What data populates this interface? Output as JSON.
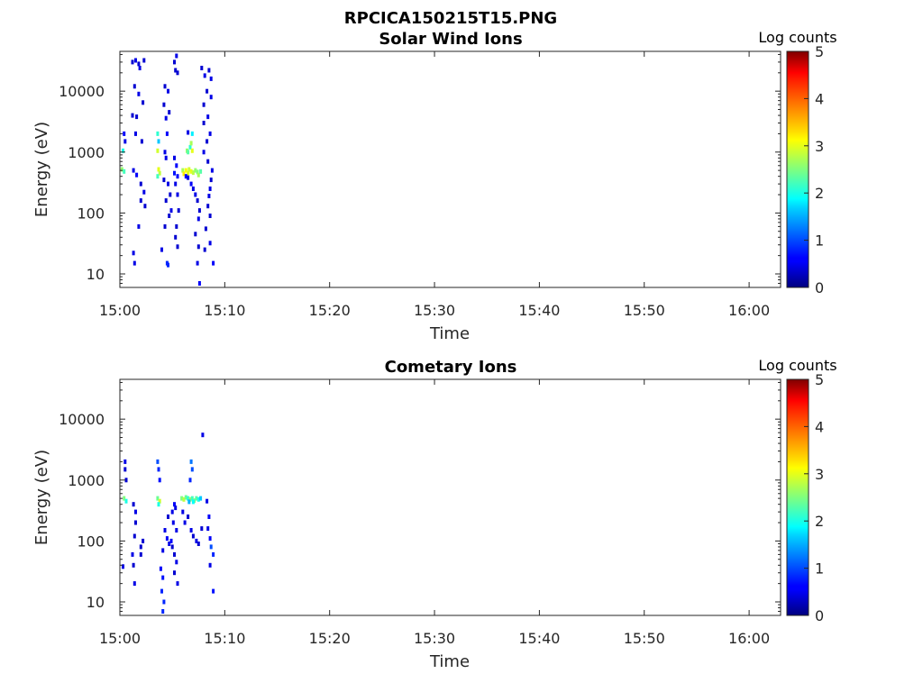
{
  "figure": {
    "title": "RPCICA150215T15.PNG"
  },
  "colorbar_label": "Log counts",
  "chart_data": [
    {
      "type": "heatmap",
      "title": "Solar Wind Ions",
      "xlabel": "Time",
      "ylabel": "Energy (eV)",
      "x_ticks": [
        "15:00",
        "15:10",
        "15:20",
        "15:30",
        "15:40",
        "15:50",
        "16:00"
      ],
      "xlim_minutes": [
        0,
        63
      ],
      "y_scale": "log",
      "y_ticks": [
        "10",
        "100",
        "1000",
        "10000"
      ],
      "ylim": [
        6,
        45000
      ],
      "colorbar": {
        "label": "Log counts",
        "range": [
          0,
          5
        ],
        "ticks": [
          "0",
          "1",
          "2",
          "3",
          "4",
          "5"
        ],
        "colormap": "jet"
      },
      "cells": [
        [
          0.2,
          520,
          2.6
        ],
        [
          0.4,
          480,
          2.2
        ],
        [
          0.3,
          1050,
          2.0
        ],
        [
          0.5,
          1500,
          0.5
        ],
        [
          0.4,
          2000,
          0.6
        ],
        [
          1.2,
          30000,
          0.4
        ],
        [
          1.5,
          32000,
          0.5
        ],
        [
          1.8,
          28000,
          0.4
        ],
        [
          2.3,
          32000,
          0.4
        ],
        [
          1.9,
          24000,
          0.5
        ],
        [
          1.4,
          12000,
          0.4
        ],
        [
          1.8,
          9000,
          0.5
        ],
        [
          2.2,
          6500,
          0.4
        ],
        [
          1.2,
          4000,
          0.4
        ],
        [
          1.6,
          3800,
          0.4
        ],
        [
          1.5,
          2000,
          0.5
        ],
        [
          2.1,
          1500,
          0.4
        ],
        [
          1.3,
          500,
          0.5
        ],
        [
          1.6,
          420,
          0.6
        ],
        [
          2.0,
          300,
          0.4
        ],
        [
          2.3,
          220,
          0.5
        ],
        [
          2.0,
          160,
          0.4
        ],
        [
          2.4,
          130,
          0.4
        ],
        [
          1.8,
          60,
          0.5
        ],
        [
          1.3,
          22,
          0.5
        ],
        [
          1.4,
          15,
          0.5
        ],
        [
          3.6,
          2000,
          2.1
        ],
        [
          3.7,
          1500,
          1.6
        ],
        [
          3.6,
          1050,
          2.9
        ],
        [
          3.7,
          520,
          3.0
        ],
        [
          3.8,
          450,
          2.8
        ],
        [
          3.6,
          400,
          2.2
        ],
        [
          4.3,
          12000,
          0.4
        ],
        [
          4.6,
          10000,
          0.5
        ],
        [
          4.2,
          6000,
          0.4
        ],
        [
          4.7,
          4500,
          0.4
        ],
        [
          4.4,
          3600,
          0.5
        ],
        [
          4.5,
          2000,
          0.6
        ],
        [
          4.3,
          1000,
          0.5
        ],
        [
          4.4,
          800,
          0.5
        ],
        [
          4.2,
          350,
          0.4
        ],
        [
          4.6,
          300,
          0.5
        ],
        [
          4.8,
          200,
          0.4
        ],
        [
          4.4,
          160,
          0.4
        ],
        [
          4.9,
          110,
          0.5
        ],
        [
          4.7,
          90,
          0.4
        ],
        [
          4.3,
          60,
          0.4
        ],
        [
          4.0,
          25,
          0.5
        ],
        [
          4.5,
          15,
          0.8
        ],
        [
          4.6,
          14,
          0.8
        ],
        [
          5.2,
          30000,
          0.4
        ],
        [
          5.4,
          38000,
          0.5
        ],
        [
          5.3,
          22000,
          0.4
        ],
        [
          5.5,
          20000,
          0.4
        ],
        [
          5.2,
          800,
          0.5
        ],
        [
          5.4,
          600,
          0.6
        ],
        [
          5.2,
          450,
          0.7
        ],
        [
          5.5,
          400,
          0.6
        ],
        [
          5.3,
          300,
          0.5
        ],
        [
          5.5,
          200,
          0.5
        ],
        [
          5.6,
          110,
          0.4
        ],
        [
          5.4,
          60,
          0.4
        ],
        [
          5.3,
          40,
          0.4
        ],
        [
          5.5,
          28,
          0.4
        ],
        [
          6.0,
          500,
          2.7
        ],
        [
          6.1,
          440,
          3.2
        ],
        [
          6.3,
          500,
          3.1
        ],
        [
          6.5,
          450,
          3.0
        ],
        [
          6.6,
          520,
          2.9
        ],
        [
          6.8,
          480,
          3.0
        ],
        [
          7.0,
          460,
          2.8
        ],
        [
          7.2,
          500,
          2.6
        ],
        [
          7.4,
          470,
          2.5
        ],
        [
          7.5,
          420,
          2.7
        ],
        [
          7.7,
          480,
          2.3
        ],
        [
          6.4,
          1050,
          2.6
        ],
        [
          6.5,
          1000,
          2.3
        ],
        [
          6.7,
          1200,
          2.1
        ],
        [
          6.8,
          1400,
          2.7
        ],
        [
          6.9,
          1050,
          3.0
        ],
        [
          6.9,
          2000,
          1.8
        ],
        [
          6.5,
          2100,
          0.5
        ],
        [
          6.3,
          400,
          0.6
        ],
        [
          6.5,
          380,
          0.5
        ],
        [
          6.8,
          300,
          0.6
        ],
        [
          7.0,
          250,
          0.5
        ],
        [
          7.2,
          200,
          0.5
        ],
        [
          7.4,
          160,
          0.4
        ],
        [
          7.6,
          110,
          0.4
        ],
        [
          7.5,
          80,
          0.5
        ],
        [
          7.2,
          45,
          0.4
        ],
        [
          7.5,
          28,
          0.4
        ],
        [
          7.4,
          15,
          0.5
        ],
        [
          7.6,
          7,
          0.6
        ],
        [
          7.8,
          24000,
          0.4
        ],
        [
          8.1,
          18000,
          0.5
        ],
        [
          8.5,
          22000,
          0.4
        ],
        [
          8.7,
          16000,
          0.5
        ],
        [
          8.3,
          10000,
          0.4
        ],
        [
          8.7,
          8000,
          0.5
        ],
        [
          8.0,
          6000,
          0.4
        ],
        [
          8.4,
          3800,
          0.5
        ],
        [
          8.0,
          3000,
          0.4
        ],
        [
          8.6,
          2000,
          0.5
        ],
        [
          8.3,
          1500,
          0.4
        ],
        [
          8.0,
          1000,
          0.5
        ],
        [
          8.4,
          700,
          0.4
        ],
        [
          8.8,
          500,
          0.5
        ],
        [
          8.7,
          350,
          0.4
        ],
        [
          8.6,
          250,
          0.5
        ],
        [
          8.5,
          190,
          0.5
        ],
        [
          8.4,
          130,
          0.4
        ],
        [
          8.6,
          90,
          0.4
        ],
        [
          8.2,
          55,
          0.4
        ],
        [
          8.6,
          32,
          0.5
        ],
        [
          8.1,
          25,
          0.4
        ],
        [
          8.9,
          15,
          0.6
        ]
      ]
    },
    {
      "type": "heatmap",
      "title": "Cometary Ions",
      "xlabel": "Time",
      "ylabel": "Energy (eV)",
      "x_ticks": [
        "15:00",
        "15:10",
        "15:20",
        "15:30",
        "15:40",
        "15:50",
        "16:00"
      ],
      "xlim_minutes": [
        0,
        63
      ],
      "y_scale": "log",
      "y_ticks": [
        "10",
        "100",
        "1000",
        "10000"
      ],
      "ylim": [
        6,
        45000
      ],
      "colorbar": {
        "label": "Log counts",
        "range": [
          0,
          5
        ],
        "ticks": [
          "0",
          "1",
          "2",
          "3",
          "4",
          "5"
        ],
        "colormap": "jet"
      },
      "cells": [
        [
          0.5,
          2000,
          0.5
        ],
        [
          0.5,
          1500,
          0.4
        ],
        [
          0.6,
          1000,
          0.4
        ],
        [
          0.4,
          500,
          2.5
        ],
        [
          0.6,
          450,
          2.0
        ],
        [
          0.3,
          38,
          0.5
        ],
        [
          1.3,
          400,
          0.4
        ],
        [
          1.5,
          300,
          0.5
        ],
        [
          1.5,
          200,
          0.4
        ],
        [
          1.4,
          120,
          0.4
        ],
        [
          1.2,
          60,
          0.5
        ],
        [
          1.3,
          40,
          0.4
        ],
        [
          1.4,
          20,
          0.5
        ],
        [
          2.0,
          80,
          0.4
        ],
        [
          2.2,
          100,
          0.4
        ],
        [
          2.0,
          60,
          0.4
        ],
        [
          3.6,
          2000,
          1.0
        ],
        [
          3.7,
          1500,
          0.8
        ],
        [
          3.8,
          1000,
          0.7
        ],
        [
          3.6,
          500,
          2.4
        ],
        [
          3.8,
          450,
          2.9
        ],
        [
          3.7,
          400,
          2.0
        ],
        [
          4.1,
          70,
          0.5
        ],
        [
          3.9,
          35,
          0.6
        ],
        [
          4.1,
          25,
          0.7
        ],
        [
          4.0,
          15,
          0.8
        ],
        [
          4.2,
          10,
          0.8
        ],
        [
          4.1,
          7,
          0.8
        ],
        [
          4.3,
          150,
          0.5
        ],
        [
          4.5,
          110,
          0.6
        ],
        [
          4.7,
          90,
          0.5
        ],
        [
          4.9,
          100,
          0.6
        ],
        [
          4.6,
          250,
          0.4
        ],
        [
          5.0,
          300,
          0.5
        ],
        [
          5.2,
          400,
          0.6
        ],
        [
          5.3,
          350,
          0.5
        ],
        [
          5.1,
          200,
          0.5
        ],
        [
          5.4,
          150,
          0.5
        ],
        [
          5.0,
          80,
          0.4
        ],
        [
          5.2,
          60,
          0.4
        ],
        [
          5.4,
          45,
          0.5
        ],
        [
          5.2,
          30,
          0.4
        ],
        [
          5.5,
          20,
          0.5
        ],
        [
          5.9,
          500,
          2.5
        ],
        [
          6.1,
          480,
          2.8
        ],
        [
          6.3,
          520,
          2.4
        ],
        [
          6.5,
          500,
          2.1
        ],
        [
          6.7,
          480,
          2.6
        ],
        [
          6.9,
          500,
          2.2
        ],
        [
          7.1,
          460,
          2.5
        ],
        [
          7.3,
          500,
          2.3
        ],
        [
          7.5,
          480,
          2.0
        ],
        [
          7.7,
          500,
          1.6
        ],
        [
          7.0,
          440,
          1.9
        ],
        [
          6.6,
          440,
          1.5
        ],
        [
          6.8,
          2000,
          1.2
        ],
        [
          6.9,
          1500,
          1.0
        ],
        [
          6.7,
          1000,
          0.8
        ],
        [
          6.0,
          300,
          0.5
        ],
        [
          6.2,
          200,
          0.5
        ],
        [
          6.5,
          250,
          0.4
        ],
        [
          6.8,
          150,
          0.5
        ],
        [
          7.0,
          120,
          0.4
        ],
        [
          7.3,
          100,
          0.5
        ],
        [
          7.5,
          90,
          0.4
        ],
        [
          7.8,
          160,
          0.4
        ],
        [
          7.9,
          5500,
          0.5
        ],
        [
          8.3,
          450,
          0.5
        ],
        [
          8.5,
          250,
          0.6
        ],
        [
          8.4,
          160,
          0.5
        ],
        [
          8.6,
          110,
          0.6
        ],
        [
          8.7,
          80,
          1.0
        ],
        [
          8.9,
          60,
          0.8
        ],
        [
          8.6,
          40,
          0.5
        ],
        [
          8.9,
          15,
          0.7
        ]
      ]
    }
  ]
}
